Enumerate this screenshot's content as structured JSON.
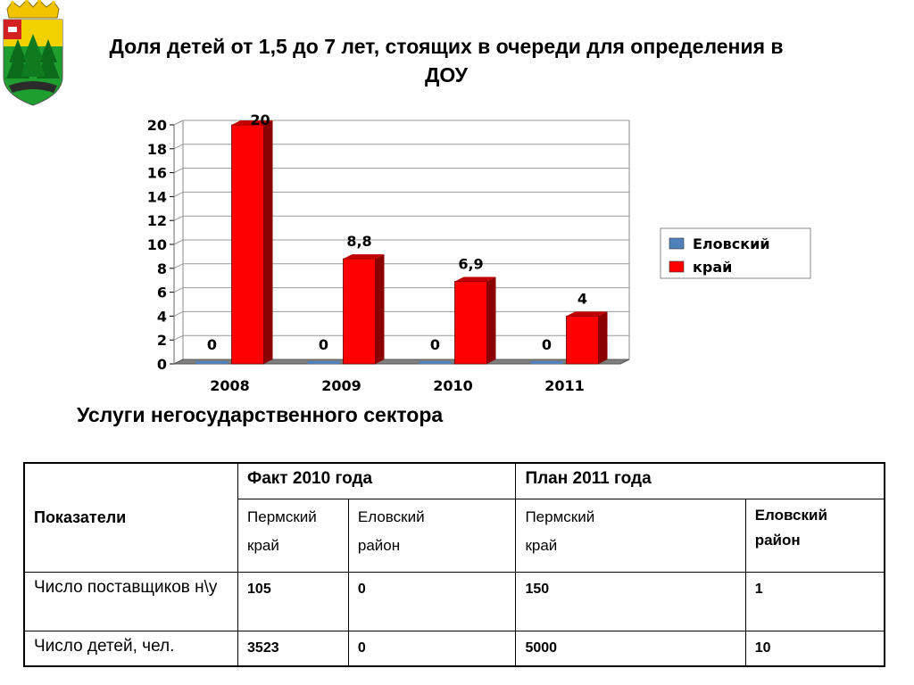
{
  "title": "Доля детей от 1,5 до 7 лет, стоящих в очереди для определения в ДОУ",
  "subtitle": "Услуги негосударственного сектора",
  "chart_data": {
    "type": "bar",
    "categories": [
      "2008",
      "2009",
      "2010",
      "2011"
    ],
    "series": [
      {
        "name": "Еловский",
        "values": [
          0,
          0,
          0,
          0
        ],
        "labels": [
          "0",
          "0",
          "0",
          "0"
        ],
        "color": "#4f81bd"
      },
      {
        "name": "край",
        "values": [
          20,
          8.8,
          6.9,
          4
        ],
        "labels": [
          "20",
          "8,8",
          "6,9",
          "4"
        ],
        "color": "#ff0000"
      }
    ],
    "ylim": [
      0,
      20
    ],
    "yticks": [
      "0",
      "2",
      "4",
      "6",
      "8",
      "10",
      "12",
      "14",
      "16",
      "18",
      "20"
    ],
    "grid": true,
    "legend": "right",
    "title": "",
    "xlabel": "",
    "ylabel": ""
  },
  "table": {
    "corner": "Показатели",
    "groups": [
      "Факт 2010 года",
      "План 2011 года"
    ],
    "subheaders": [
      {
        "line1": "Пермский",
        "line2": "край"
      },
      {
        "line1": "Еловский",
        "line2": "район"
      },
      {
        "line1": "Пермский",
        "line2": "край"
      },
      {
        "line1": "Еловский",
        "line2": "район"
      }
    ],
    "rows": [
      {
        "label": "Число поставщиков н\\у",
        "values": [
          "105",
          "0",
          "150",
          "1"
        ]
      },
      {
        "label": "Число детей, чел.",
        "values": [
          "3523",
          "0",
          "5000",
          "10"
        ]
      }
    ]
  },
  "colors": {
    "bar_red": "#ff0000",
    "bar_blue": "#4f81bd"
  },
  "icons": {
    "emblem": "coat-of-arms-icon"
  }
}
